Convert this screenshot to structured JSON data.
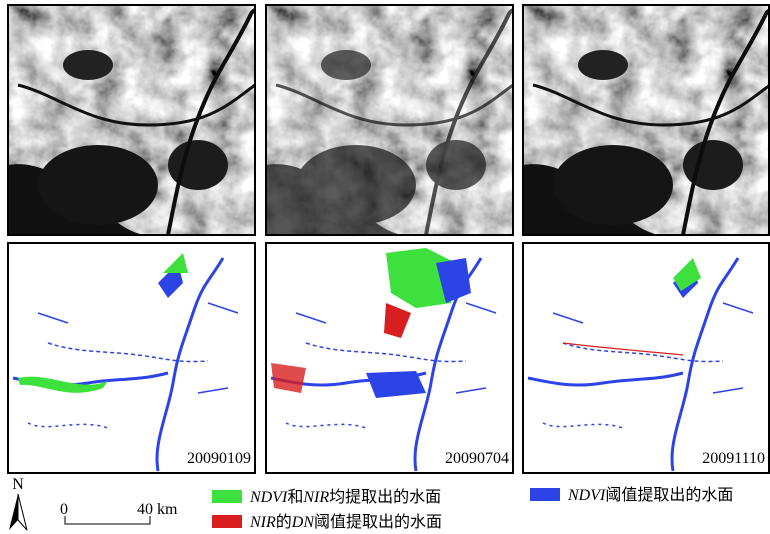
{
  "panels": [
    {
      "date": "20090109"
    },
    {
      "date": "20090704"
    },
    {
      "date": "20091110"
    }
  ],
  "north": "N",
  "scale": {
    "start": "0",
    "end": "40 km"
  },
  "legend": [
    {
      "parts": [
        "NDVI",
        "和",
        "NIR",
        "均提取出的水面"
      ]
    },
    {
      "parts": [
        "NIR",
        "的",
        "DN",
        "阈值提取出的水面"
      ]
    },
    {
      "parts": [
        "NDVI",
        "阈值提取出的水面"
      ]
    }
  ]
}
